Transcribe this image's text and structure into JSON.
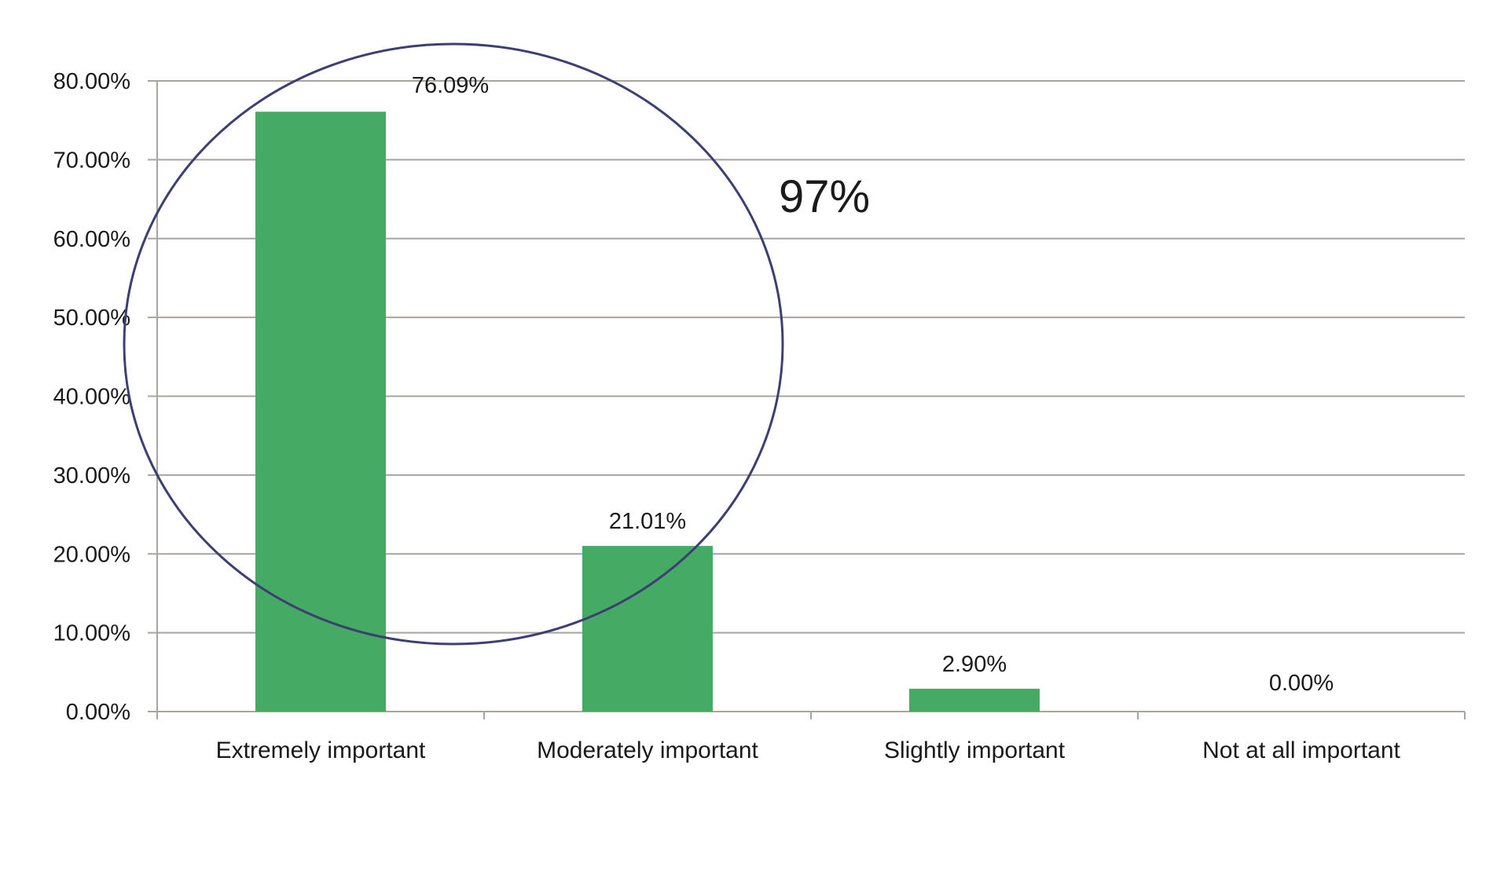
{
  "chart_data": {
    "type": "bar",
    "title": "",
    "xlabel": "",
    "ylabel": "",
    "categories": [
      "Extremely important",
      "Moderately important",
      "Slightly important",
      "Not at all important"
    ],
    "values": [
      76.09,
      21.01,
      2.9,
      0.0
    ],
    "data_labels": [
      "76.09%",
      "21.01%",
      "2.90%",
      "0.00%"
    ],
    "ylim": [
      0,
      80
    ],
    "yticks": [
      0,
      10,
      20,
      30,
      40,
      50,
      60,
      70,
      80
    ],
    "ytick_labels": [
      "0.00%",
      "10.00%",
      "20.00%",
      "30.00%",
      "40.00%",
      "50.00%",
      "60.00%",
      "70.00%",
      "80.00%"
    ],
    "grid": true,
    "legend": "none",
    "bar_color": "#45aa63",
    "annotation": {
      "text": "97%",
      "shape": "ellipse",
      "encloses": [
        "Extremely important",
        "Moderately important"
      ],
      "color": "#3d3f72"
    }
  }
}
